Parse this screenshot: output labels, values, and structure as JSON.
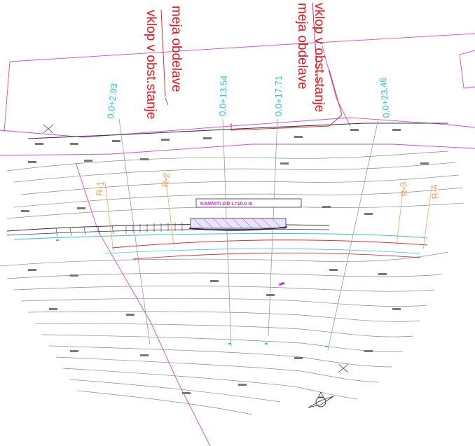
{
  "annotations": {
    "left_top": "meja obdelave",
    "left_bottom": "vklop v obst.stanje",
    "right_top": "vklop v obst.stanje",
    "right_bottom": "meja obdelave"
  },
  "stations": [
    "0.0+2.93",
    "0.0+13.54",
    "0.0+17.71",
    "0.0+23.46"
  ],
  "profile_labels": [
    "R-1",
    "R-2",
    "R-3",
    "R-4"
  ],
  "structure_label": "KAMNITI ZID L=10.0 m",
  "colors": {
    "red": "#e8141e",
    "cyan": "#2fc3df",
    "magenta": "#d02bd8",
    "orange": "#f5a35a",
    "contour": "#8a8a8a",
    "road_edge": "#e0303a",
    "structure": "#5a44c8"
  },
  "icons": [
    "north-arrow-icon",
    "cross-marker-icon"
  ]
}
